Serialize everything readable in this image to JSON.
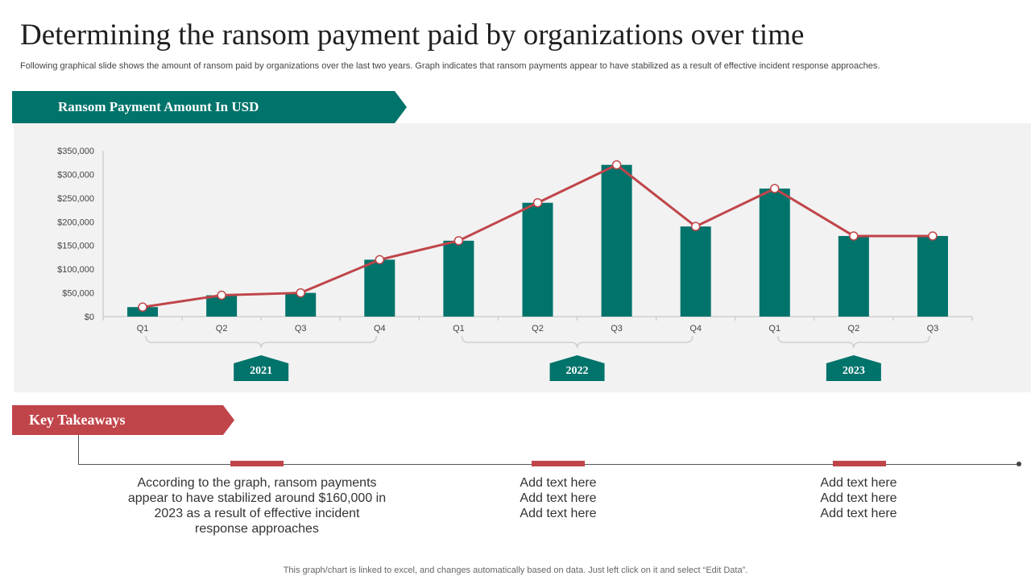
{
  "title": "Determining the ransom payment paid by organizations over time",
  "subtitle": "Following graphical slide shows the amount of ransom paid by organizations over the last two years. Graph indicates that ransom payments appear to have stabilized as a result of effective incident response approaches.",
  "chart_header": "Ransom Payment Amount In USD",
  "colors": {
    "bar": "#00736b",
    "line": "#c0454a",
    "panel": "#f2f2f2",
    "accent_red": "#c0454a"
  },
  "chart_data": {
    "type": "bar",
    "title": "Ransom Payment Amount In USD",
    "categories": [
      "Q1",
      "Q2",
      "Q3",
      "Q4",
      "Q1",
      "Q2",
      "Q3",
      "Q4",
      "Q1",
      "Q2",
      "Q3"
    ],
    "series": [
      {
        "type": "bar",
        "values": [
          20000,
          45000,
          50000,
          120000,
          160000,
          240000,
          320000,
          190000,
          270000,
          170000,
          170000
        ]
      },
      {
        "type": "line",
        "values": [
          20000,
          45000,
          50000,
          120000,
          160000,
          240000,
          320000,
          190000,
          270000,
          170000,
          170000
        ]
      }
    ],
    "ylim": [
      0,
      350000
    ],
    "yticks": [
      "$0",
      "$50,000",
      "$100,000",
      "$150,000",
      "$200,000",
      "$250,000",
      "$300,000",
      "$350,000"
    ],
    "groups": [
      {
        "label": "2021",
        "span": [
          0,
          3
        ]
      },
      {
        "label": "2022",
        "span": [
          4,
          7
        ]
      },
      {
        "label": "2023",
        "span": [
          8,
          10
        ]
      }
    ],
    "grid": false,
    "legend": "none"
  },
  "key_takeaways": {
    "header": "Key Takeaways",
    "items": [
      {
        "lines": [
          "According to the graph, ransom payments",
          "appear to have stabilized around $160,000 in",
          "2023 as a result  of effective incident",
          "response approaches"
        ]
      },
      {
        "lines": [
          "Add text here",
          "Add text here",
          "Add text here"
        ]
      },
      {
        "lines": [
          "Add text here",
          "Add text here",
          "Add text here"
        ]
      }
    ]
  },
  "footer": "This graph/chart is linked to excel,  and changes automatically based on data. Just left click on it and select “Edit Data”."
}
